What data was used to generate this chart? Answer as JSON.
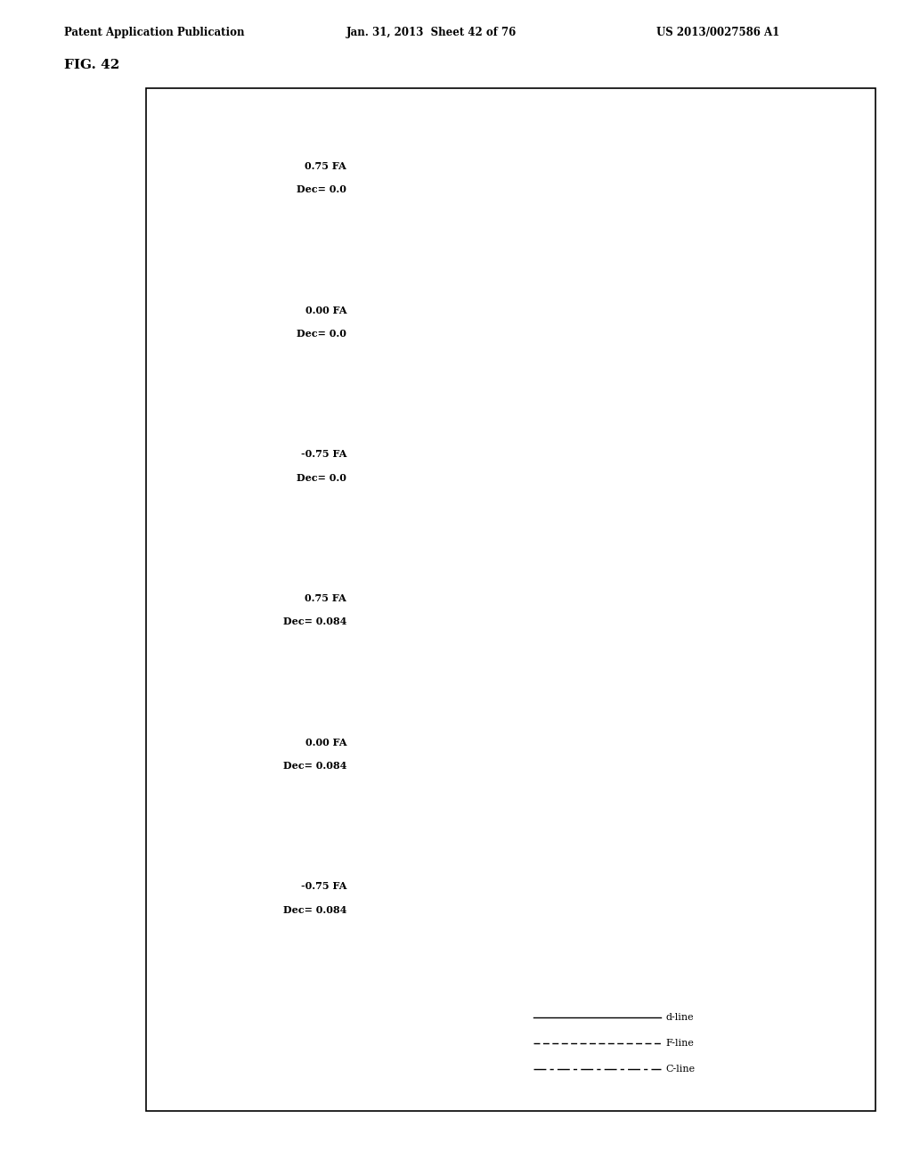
{
  "title": "FIG. 42",
  "header_left": "Patent Application Publication",
  "header_center": "Jan. 31, 2013  Sheet 42 of 76",
  "header_right": "US 2013/0027586 A1",
  "subplots": [
    {
      "label_fa": "0.75 FA",
      "label_dec": "Dec= 0.0",
      "fa": 0.75,
      "dec": 0.0
    },
    {
      "label_fa": "0.00 FA",
      "label_dec": "Dec= 0.0",
      "fa": 0.0,
      "dec": 0.0
    },
    {
      "label_fa": "-0.75 FA",
      "label_dec": "Dec= 0.0",
      "fa": -0.75,
      "dec": 0.0
    },
    {
      "label_fa": "0.75 FA",
      "label_dec": "Dec= 0.084",
      "fa": 0.75,
      "dec": 0.084
    },
    {
      "label_fa": "0.00 FA",
      "label_dec": "Dec= 0.084",
      "fa": 0.0,
      "dec": 0.084
    },
    {
      "label_fa": "-0.75 FA",
      "label_dec": "Dec= 0.084",
      "fa": -0.75,
      "dec": 0.084
    }
  ],
  "ylim": [
    -0.025,
    0.025
  ],
  "xlim": [
    -1.0,
    1.0
  ],
  "yticks": [
    -0.02,
    0.02
  ],
  "xticks": [
    -1.0,
    -0.75,
    -0.5,
    -0.25,
    0.0,
    0.25,
    0.5,
    0.75,
    1.0
  ],
  "bg_color": "#ffffff",
  "legend_entries": [
    "d-line",
    "F-line",
    "C-line"
  ]
}
